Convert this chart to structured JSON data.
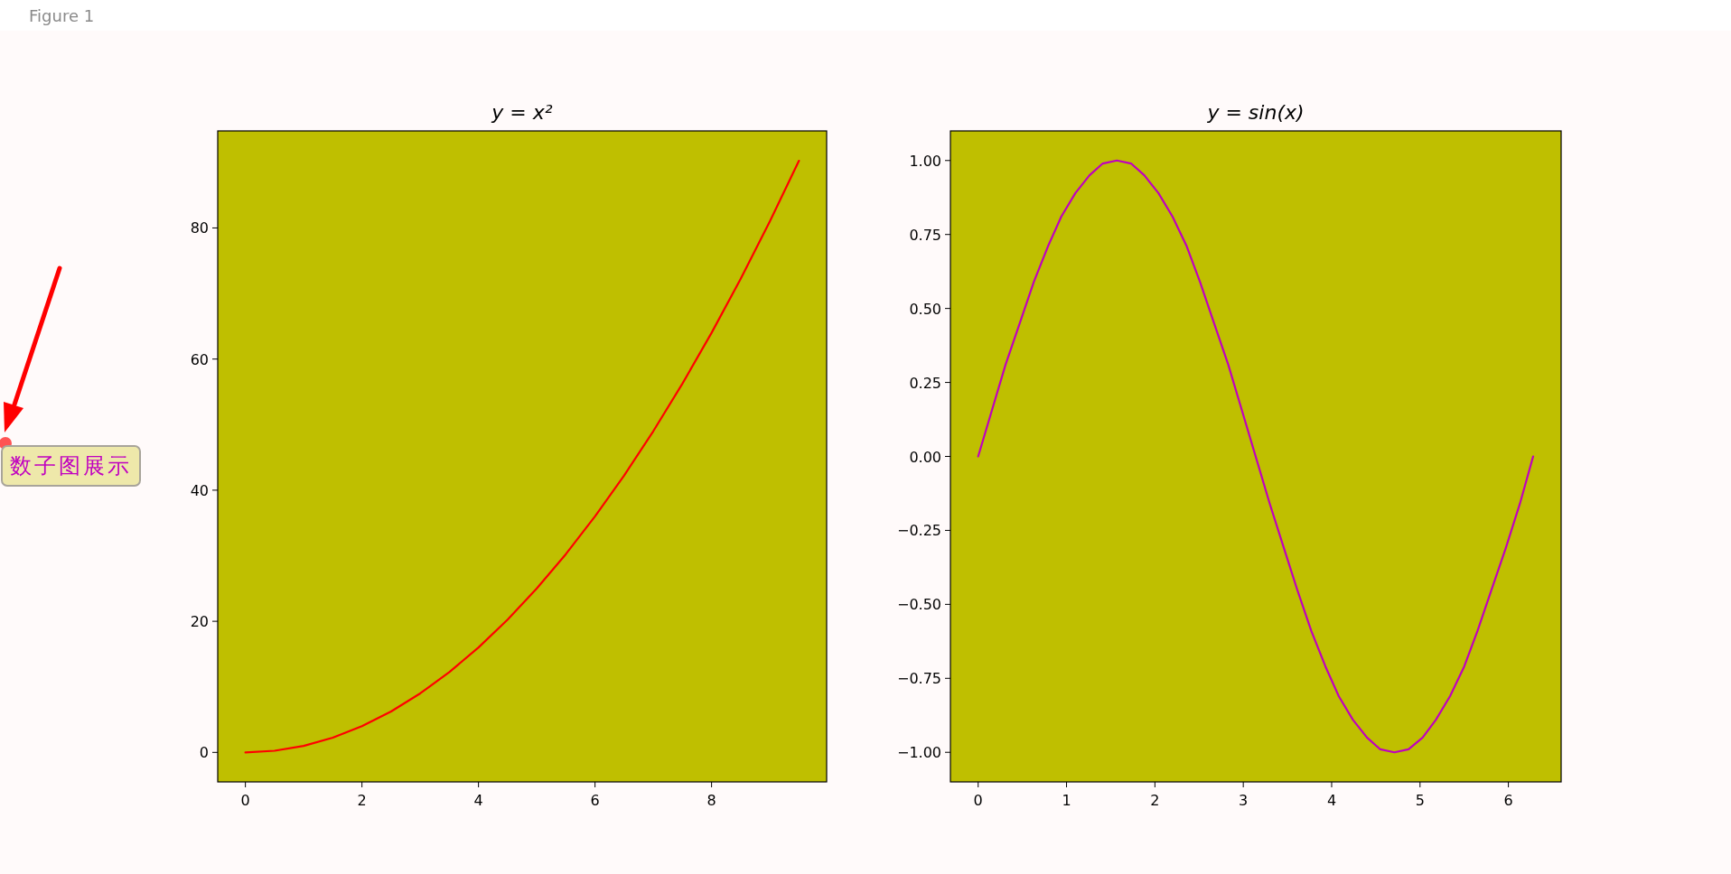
{
  "chart_data": [
    {
      "type": "line",
      "title": "y = x²",
      "annotations": [
        "Figure 1",
        "数子图展示"
      ],
      "x": [
        0,
        0.5,
        1,
        1.5,
        2,
        2.5,
        3,
        3.5,
        4,
        4.5,
        5,
        5.5,
        6,
        6.5,
        7,
        7.5,
        8,
        8.5,
        9,
        9.5
      ],
      "series": [
        {
          "color": "#ff0000",
          "values": [
            0,
            0.25,
            1,
            2.25,
            4,
            6.25,
            9,
            12.25,
            16,
            20.25,
            25,
            30.25,
            36,
            42.25,
            49,
            56.25,
            64,
            72.25,
            81,
            90.25
          ]
        }
      ],
      "xlim": [
        -0.475,
        9.975
      ],
      "ylim": [
        -4.5,
        94.8
      ],
      "xticks": [
        0,
        2,
        4,
        6,
        8
      ],
      "yticks": [
        0,
        20,
        40,
        60,
        80
      ]
    },
    {
      "type": "line",
      "title": "y = sin(x)",
      "x": [
        0,
        0.16,
        0.31,
        0.47,
        0.63,
        0.79,
        0.94,
        1.1,
        1.26,
        1.41,
        1.57,
        1.73,
        1.88,
        2.04,
        2.2,
        2.36,
        2.51,
        2.67,
        2.83,
        2.98,
        3.14,
        3.3,
        3.46,
        3.61,
        3.77,
        3.93,
        4.08,
        4.24,
        4.4,
        4.55,
        4.71,
        4.87,
        5.03,
        5.18,
        5.34,
        5.5,
        5.65,
        5.81,
        5.97,
        6.13,
        6.28
      ],
      "series": [
        {
          "color": "#bf00bf",
          "values": [
            0,
            0.16,
            0.31,
            0.45,
            0.59,
            0.71,
            0.81,
            0.89,
            0.95,
            0.99,
            1,
            0.99,
            0.95,
            0.89,
            0.81,
            0.71,
            0.59,
            0.45,
            0.31,
            0.16,
            0,
            -0.16,
            -0.31,
            -0.45,
            -0.59,
            -0.71,
            -0.81,
            -0.89,
            -0.95,
            -0.99,
            -1,
            -0.99,
            -0.95,
            -0.89,
            -0.81,
            -0.71,
            -0.59,
            -0.45,
            -0.31,
            -0.16,
            0
          ]
        }
      ],
      "xlim": [
        -0.314,
        6.597
      ],
      "ylim": [
        -1.1,
        1.1
      ],
      "xticks": [
        0,
        1,
        2,
        3,
        4,
        5,
        6
      ],
      "yticks": [
        {
          "value": -1,
          "label": "−1.00"
        },
        {
          "value": -0.75,
          "label": "−0.75"
        },
        {
          "value": -0.5,
          "label": "−0.50"
        },
        {
          "value": -0.25,
          "label": "−0.25"
        },
        {
          "value": 0,
          "label": "0.00"
        },
        {
          "value": 0.25,
          "label": "0.25"
        },
        {
          "value": 0.5,
          "label": "0.50"
        },
        {
          "value": 0.75,
          "label": "0.75"
        },
        {
          "value": 1,
          "label": "1.00"
        }
      ]
    }
  ]
}
